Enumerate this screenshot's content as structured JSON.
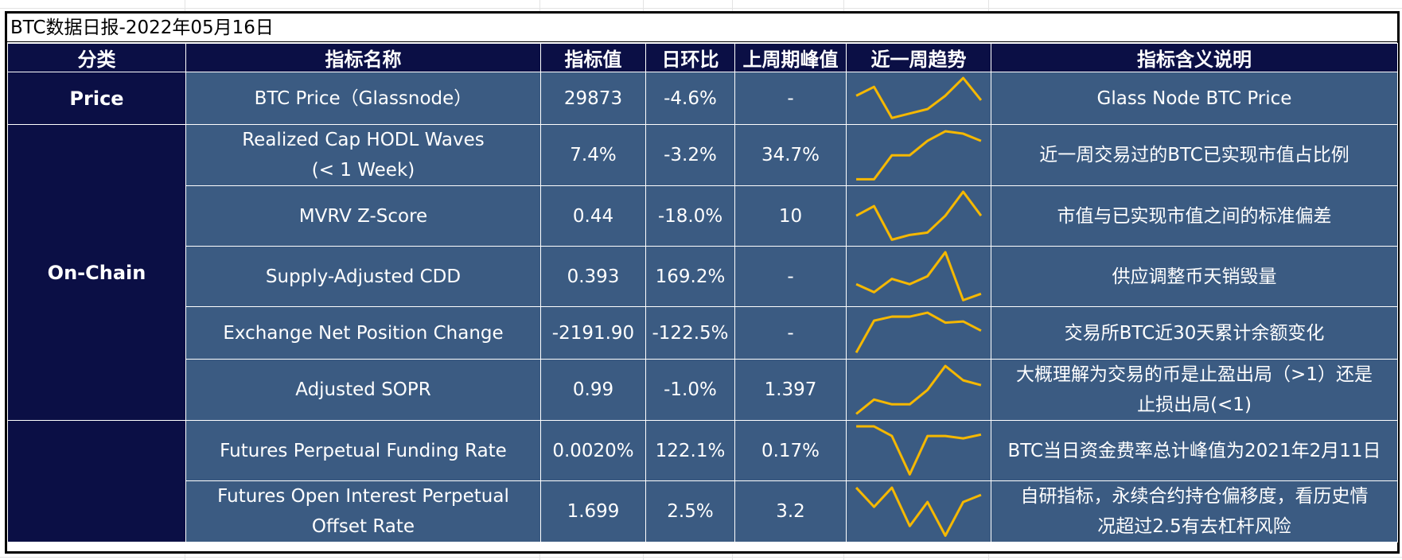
{
  "title": "BTC数据日报-2022年05月16日",
  "headers": [
    "分类",
    "指标名称",
    "指标值",
    "日环比",
    "上周期峰值",
    "近一周趋势",
    "指标含义说明"
  ],
  "categories": {
    "price": "Price",
    "onchain": "On-Chain",
    "derivatives": ""
  },
  "rows": [
    {
      "name_lines": [
        "BTC Price（Glassnode）"
      ],
      "value": "29873",
      "change": "-4.6%",
      "peak": "-",
      "desc_lines": [
        "Glass Node BTC Price"
      ],
      "trend": [
        5,
        7,
        0,
        1,
        2,
        5,
        9,
        4
      ]
    },
    {
      "name_lines": [
        "Realized Cap HODL Waves",
        "(< 1 Week)"
      ],
      "value": "7.4%",
      "change": "-3.2%",
      "peak": "34.7%",
      "desc_lines": [
        "近一周交易过的BTC已实现市值占比例"
      ],
      "trend": [
        0,
        0,
        5,
        5,
        8,
        10,
        9.5,
        8
      ]
    },
    {
      "name_lines": [
        "MVRV Z-Score"
      ],
      "value": "0.44",
      "change": "-18.0%",
      "peak": "10",
      "desc_lines": [
        "市值与已实现市值之间的标准偏差"
      ],
      "trend": [
        5,
        7,
        0,
        1,
        1.5,
        5,
        10,
        5
      ]
    },
    {
      "name_lines": [
        "Supply-Adjusted CDD"
      ],
      "value": "0.393",
      "change": "169.2%",
      "peak": "-",
      "desc_lines": [
        "供应调整币天销毁量"
      ],
      "trend": [
        3,
        1.5,
        4,
        3,
        4.5,
        9,
        0,
        1.2
      ]
    },
    {
      "name_lines": [
        "Exchange Net Position Change"
      ],
      "value": "-2191.90",
      "change": "-122.5%",
      "peak": "-",
      "desc_lines": [
        "交易所BTC近30天累计余额变化"
      ],
      "trend": [
        0,
        8,
        9,
        9,
        10,
        7.5,
        7.8,
        5.5
      ]
    },
    {
      "name_lines": [
        "Adjusted SOPR"
      ],
      "value": "0.99",
      "change": "-1.0%",
      "peak": "1.397",
      "desc_lines": [
        "大概理解为交易的币是止盈出局（>1）还是",
        "止损出局(<1)"
      ],
      "trend": [
        0,
        3,
        2,
        2,
        5,
        10,
        7,
        6
      ]
    },
    {
      "name_lines": [
        "Futures Perpetual Funding Rate"
      ],
      "value": "0.0020%",
      "change": "122.1%",
      "peak": "0.17%",
      "desc_lines": [
        "BTC当日资金费率总计峰值为2021年2月11日"
      ],
      "trend": [
        10,
        10,
        8,
        0,
        8,
        8,
        7.5,
        8.3
      ]
    },
    {
      "name_lines": [
        "Futures Open Interest Perpetual",
        "Offset Rate"
      ],
      "value": "1.699",
      "change": "2.5%",
      "peak": "3.2",
      "desc_lines": [
        "自研指标，永续合约持仓偏移度，看历史情",
        "况超过2.5有去杠杆风险"
      ],
      "trend": [
        10,
        6,
        10,
        2,
        7,
        0,
        7,
        8.5
      ]
    }
  ],
  "colors": {
    "header_bg": "#0b0f45",
    "cell_bg": "#3b5b82",
    "negative": "#e22020",
    "positive": "#1db341",
    "trend_line": "#f5b800"
  }
}
